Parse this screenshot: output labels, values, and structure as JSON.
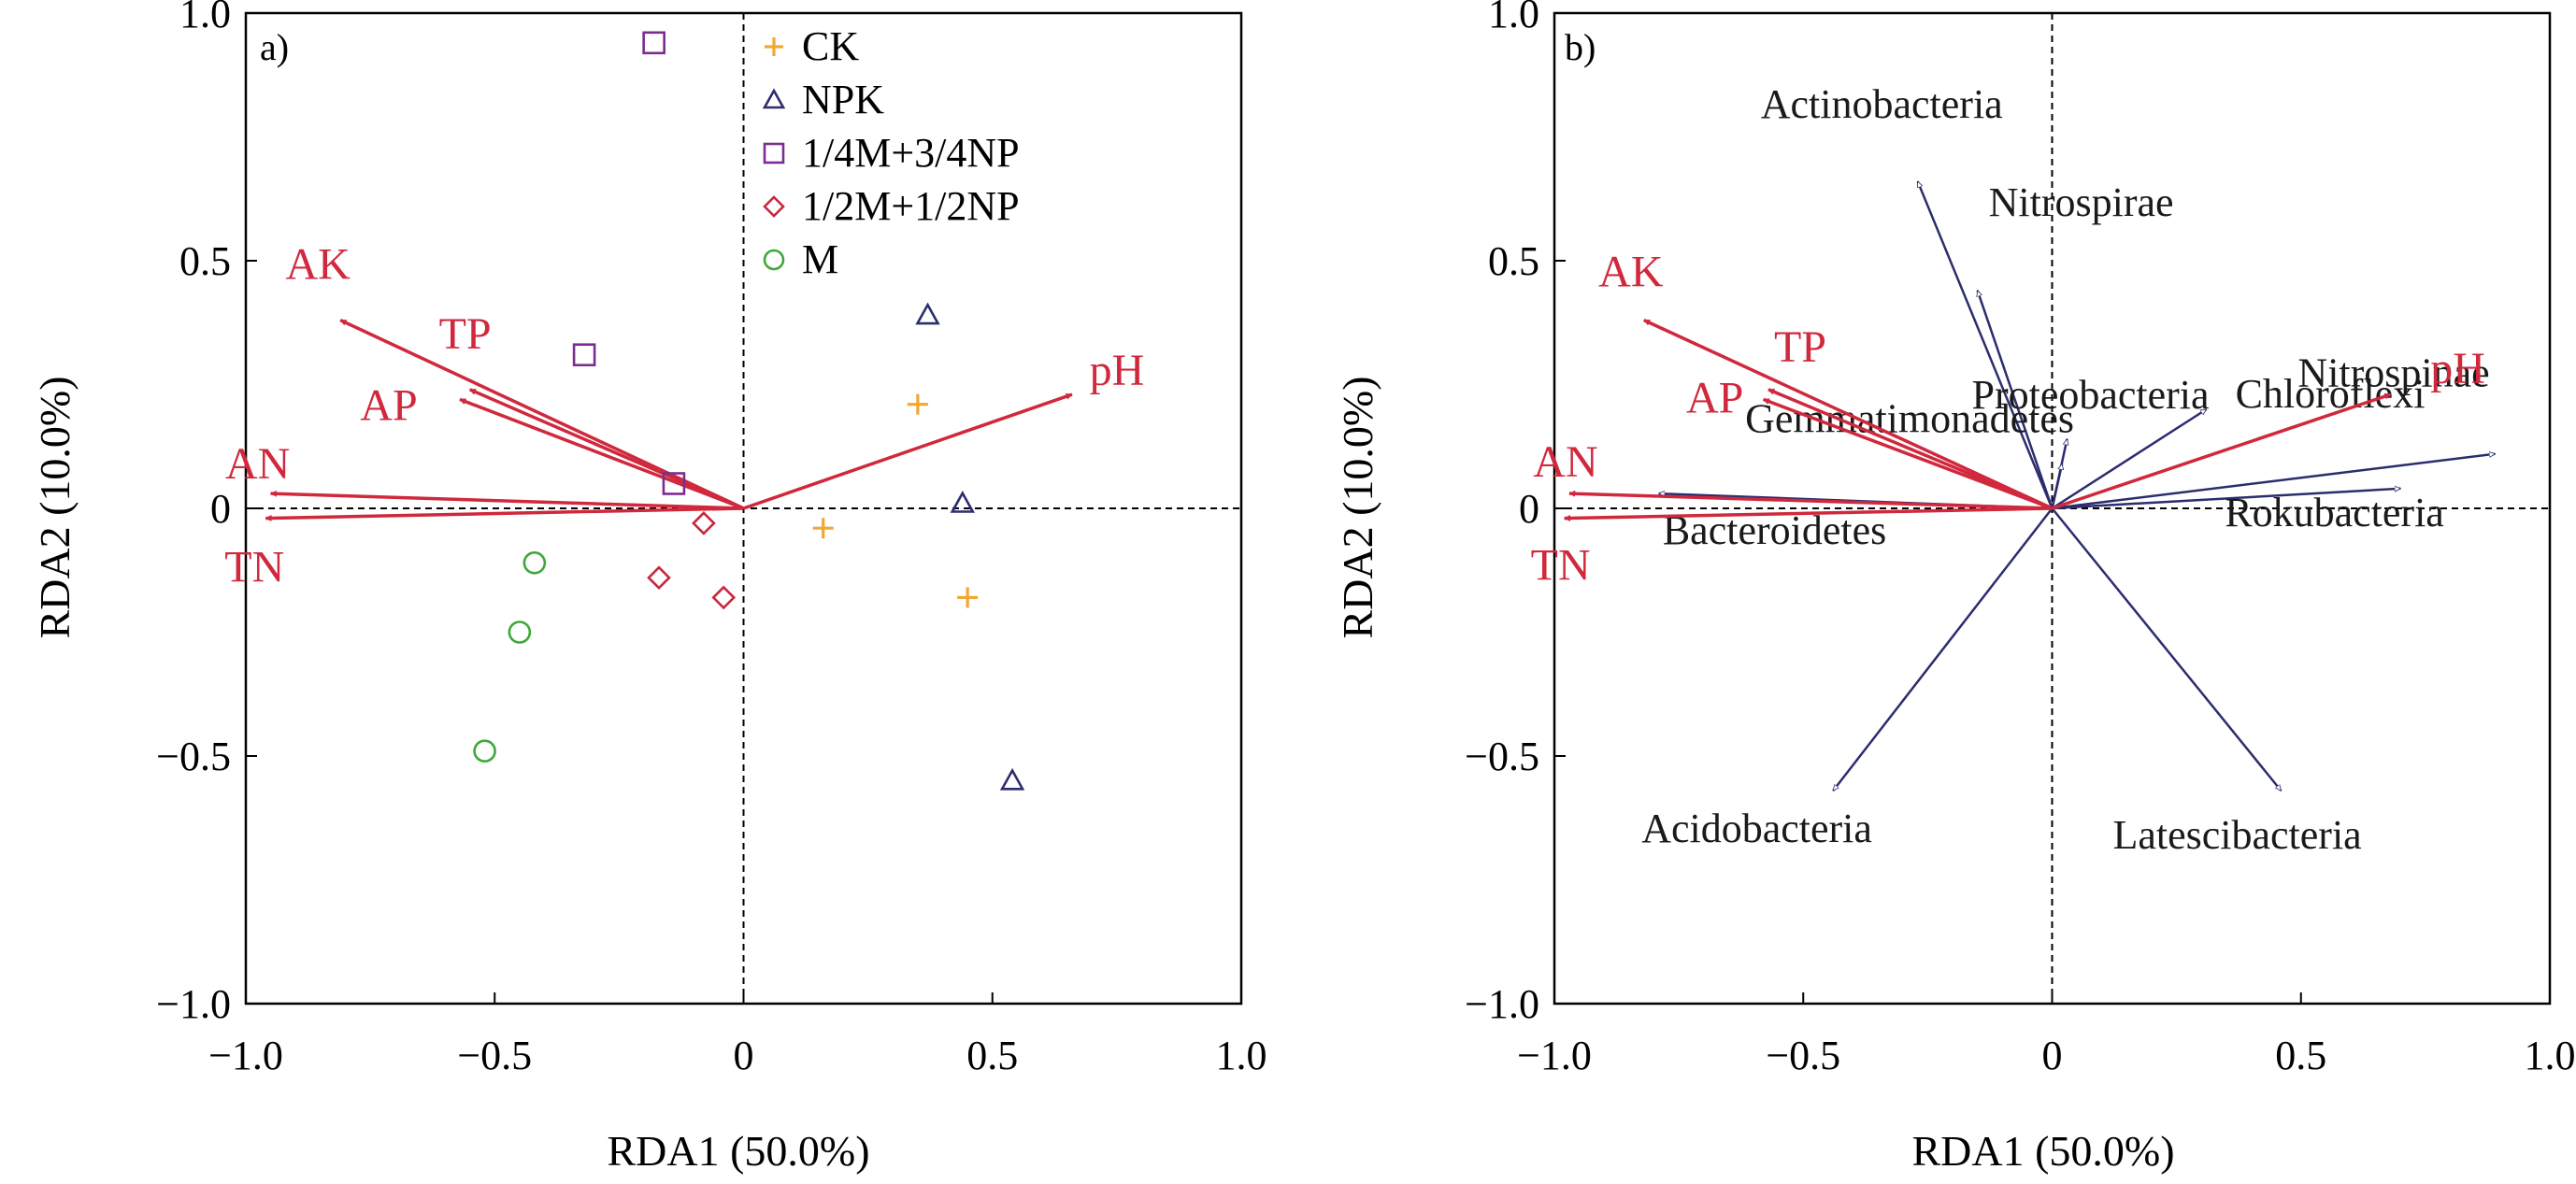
{
  "colors": {
    "CK": "#f0a830",
    "NPK": "#2b2d6e",
    "quarter": "#7b2d8f",
    "half": "#c8283c",
    "M": "#3fa83a",
    "env": "#d0283c",
    "species": "#2b2d6e",
    "axis": "#000000"
  },
  "chart_data": [
    {
      "type": "scatter",
      "panel_label": "a)",
      "xlabel": "RDA1 (50.0%)",
      "ylabel": "RDA2 (10.0%)",
      "xlim": [
        -1.0,
        1.0
      ],
      "ylim": [
        -1.0,
        1.0
      ],
      "xticks": [
        -1.0,
        -0.5,
        0,
        0.5,
        1.0
      ],
      "yticks": [
        -1.0,
        -0.5,
        0,
        0.5,
        1.0
      ],
      "xtick_labels": [
        "−1.0",
        "−0.5",
        "0",
        "0.5",
        "1.0"
      ],
      "ytick_labels": [
        "−1.0",
        "−0.5",
        "0",
        "0.5",
        "1.0"
      ],
      "reference_lines": "dashed lines at x=0 and y=0",
      "legend_position": "top-center",
      "series": [
        {
          "name": "CK",
          "marker": "plus",
          "color_key": "CK",
          "points": [
            [
              0.35,
              0.21
            ],
            [
              0.16,
              -0.04
            ],
            [
              0.45,
              -0.18
            ]
          ]
        },
        {
          "name": "NPK",
          "marker": "triangle",
          "color_key": "NPK",
          "points": [
            [
              0.37,
              0.39
            ],
            [
              0.44,
              0.01
            ],
            [
              0.54,
              -0.55
            ]
          ]
        },
        {
          "name": "1/4M+3/4NP",
          "marker": "square",
          "color_key": "quarter",
          "points": [
            [
              -0.18,
              0.94
            ],
            [
              -0.32,
              0.31
            ],
            [
              -0.14,
              0.05
            ]
          ]
        },
        {
          "name": "1/2M+1/2NP",
          "marker": "diamond",
          "color_key": "half",
          "points": [
            [
              -0.08,
              -0.03
            ],
            [
              -0.17,
              -0.14
            ],
            [
              -0.04,
              -0.18
            ]
          ]
        },
        {
          "name": "M",
          "marker": "circle",
          "color_key": "M",
          "points": [
            [
              -0.42,
              -0.11
            ],
            [
              -0.45,
              -0.25
            ],
            [
              -0.52,
              -0.49
            ]
          ]
        }
      ],
      "env_vectors": [
        {
          "name": "AK",
          "x": -0.81,
          "y": 0.38
        },
        {
          "name": "TP",
          "x": -0.55,
          "y": 0.24
        },
        {
          "name": "AP",
          "x": -0.57,
          "y": 0.22
        },
        {
          "name": "AN",
          "x": -0.95,
          "y": 0.03
        },
        {
          "name": "TN",
          "x": -0.96,
          "y": -0.02
        },
        {
          "name": "pH",
          "x": 0.66,
          "y": 0.23
        }
      ]
    },
    {
      "type": "scatter",
      "panel_label": "b)",
      "xlabel": "RDA1 (50.0%)",
      "ylabel": "RDA2 (10.0%)",
      "xlim": [
        -1.0,
        1.0
      ],
      "ylim": [
        -1.0,
        1.0
      ],
      "xticks": [
        -1.0,
        -0.5,
        0,
        0.5,
        1.0
      ],
      "yticks": [
        -1.0,
        -0.5,
        0,
        0.5,
        1.0
      ],
      "xtick_labels": [
        "−1.0",
        "−0.5",
        "0",
        "0.5",
        "1.0"
      ],
      "ytick_labels": [
        "−1.0",
        "−0.5",
        "0",
        "0.5",
        "1.0"
      ],
      "reference_lines": "dashed lines at x=0 and y=0",
      "env_vectors": [
        {
          "name": "AK",
          "x": -0.82,
          "y": 0.38
        },
        {
          "name": "TP",
          "x": -0.57,
          "y": 0.24
        },
        {
          "name": "AP",
          "x": -0.58,
          "y": 0.22
        },
        {
          "name": "AN",
          "x": -0.97,
          "y": 0.03
        },
        {
          "name": "TN",
          "x": -0.98,
          "y": -0.02
        },
        {
          "name": "pH",
          "x": 0.68,
          "y": 0.23
        }
      ],
      "species_vectors": [
        {
          "name": "Actinobacteria",
          "x": -0.27,
          "y": 0.66
        },
        {
          "name": "Nitrospirae",
          "x": -0.15,
          "y": 0.44
        },
        {
          "name": "Chloroflexi",
          "x": 0.31,
          "y": 0.2
        },
        {
          "name": "Proteobacteria",
          "x": 0.03,
          "y": 0.14
        },
        {
          "name": "Gemmatimonadetes",
          "x": 0.02,
          "y": 0.09
        },
        {
          "name": "Nitrospinae",
          "x": 0.89,
          "y": 0.11
        },
        {
          "name": "Rokubacteria",
          "x": 0.7,
          "y": 0.04
        },
        {
          "name": "Bacteroidetes",
          "x": -0.79,
          "y": 0.03
        },
        {
          "name": "Acidobacteria",
          "x": -0.44,
          "y": -0.57
        },
        {
          "name": "Latescibacteria",
          "x": 0.46,
          "y": -0.57
        }
      ]
    }
  ]
}
